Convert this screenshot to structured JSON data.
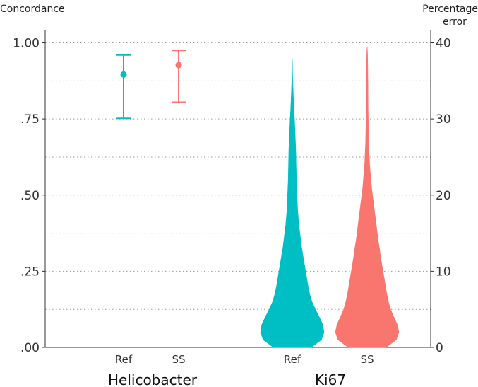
{
  "chart_data": {
    "type": "violin",
    "left_axis": {
      "title": "Concordance",
      "ylim": [
        0,
        1
      ],
      "ticks": [
        0,
        0.25,
        0.5,
        0.75,
        1.0
      ],
      "tick_labels": [
        ".00",
        ".25",
        ".50",
        ".75",
        "1.00"
      ]
    },
    "right_axis": {
      "title_lines": [
        "Percentage",
        "error"
      ],
      "ylim": [
        0,
        40
      ],
      "ticks": [
        0,
        10,
        20,
        30,
        40
      ],
      "tick_labels": [
        "0",
        "10",
        "20",
        "30",
        "40"
      ]
    },
    "grid": {
      "on": true,
      "style": "dotted",
      "minor_steps": 8
    },
    "groups": [
      {
        "label": "Helicobacter",
        "axis": "left",
        "kind": "errorbar",
        "series": [
          {
            "label": "Ref",
            "color": "#00BFC4",
            "mean": 0.896,
            "lower": 0.752,
            "upper": 0.96
          },
          {
            "label": "SS",
            "color": "#F8766D",
            "mean": 0.927,
            "lower": 0.805,
            "upper": 0.975
          }
        ]
      },
      {
        "label": "Ki67",
        "axis": "right",
        "kind": "violin",
        "series": [
          {
            "label": "Ref",
            "color": "#00BFC4",
            "profile": [
              [
                0,
                0.6
              ],
              [
                1,
                0.92
              ],
              [
                2,
                1.0
              ],
              [
                3,
                0.96
              ],
              [
                4,
                0.85
              ],
              [
                5,
                0.73
              ],
              [
                6,
                0.62
              ],
              [
                7,
                0.55
              ],
              [
                8,
                0.5
              ],
              [
                9,
                0.46
              ],
              [
                10,
                0.42
              ],
              [
                11,
                0.38
              ],
              [
                12,
                0.34
              ],
              [
                13,
                0.3
              ],
              [
                14,
                0.27
              ],
              [
                15,
                0.24
              ],
              [
                16,
                0.21
              ],
              [
                17,
                0.19
              ],
              [
                18,
                0.17
              ],
              [
                19,
                0.16
              ],
              [
                20,
                0.15
              ],
              [
                21,
                0.14
              ],
              [
                22,
                0.13
              ],
              [
                23,
                0.125
              ],
              [
                24,
                0.12
              ],
              [
                25,
                0.115
              ],
              [
                26,
                0.11
              ],
              [
                27,
                0.1
              ],
              [
                28,
                0.09
              ],
              [
                29,
                0.08
              ],
              [
                30,
                0.07
              ],
              [
                31,
                0.055
              ],
              [
                32,
                0.045
              ],
              [
                33,
                0.035
              ],
              [
                34,
                0.025
              ],
              [
                35,
                0.015
              ],
              [
                36,
                0.01
              ],
              [
                37,
                0.005
              ],
              [
                37.8,
                0
              ]
            ]
          },
          {
            "label": "SS",
            "color": "#F8766D",
            "profile": [
              [
                0,
                0.6
              ],
              [
                1,
                0.92
              ],
              [
                2,
                1.0
              ],
              [
                3,
                0.95
              ],
              [
                4,
                0.84
              ],
              [
                5,
                0.74
              ],
              [
                6,
                0.67
              ],
              [
                7,
                0.62
              ],
              [
                8,
                0.58
              ],
              [
                9,
                0.54
              ],
              [
                10,
                0.5
              ],
              [
                11,
                0.46
              ],
              [
                12,
                0.42
              ],
              [
                13,
                0.39
              ],
              [
                14,
                0.35
              ],
              [
                15,
                0.32
              ],
              [
                16,
                0.29
              ],
              [
                17,
                0.26
              ],
              [
                18,
                0.23
              ],
              [
                19,
                0.2
              ],
              [
                20,
                0.17
              ],
              [
                21,
                0.14
              ],
              [
                22,
                0.12
              ],
              [
                23,
                0.1
              ],
              [
                24,
                0.08
              ],
              [
                25,
                0.07
              ],
              [
                26,
                0.06
              ],
              [
                27,
                0.05
              ],
              [
                28,
                0.045
              ],
              [
                29,
                0.04
              ],
              [
                30,
                0.035
              ],
              [
                31,
                0.032
              ],
              [
                32,
                0.03
              ],
              [
                33,
                0.028
              ],
              [
                34,
                0.026
              ],
              [
                35,
                0.024
              ],
              [
                36,
                0.022
              ],
              [
                37,
                0.02
              ],
              [
                38,
                0.015
              ],
              [
                39,
                0.01
              ],
              [
                39.5,
                0
              ]
            ]
          }
        ]
      }
    ]
  }
}
